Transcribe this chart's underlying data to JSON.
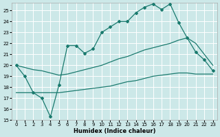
{
  "xlabel": "Humidex (Indice chaleur)",
  "bg_color": "#cce8e8",
  "grid_color": "#ffffff",
  "line_color": "#1a7a6e",
  "xlim": [
    -0.5,
    23.5
  ],
  "ylim": [
    15,
    25.7
  ],
  "xticks": [
    0,
    1,
    2,
    3,
    4,
    5,
    6,
    7,
    8,
    9,
    10,
    11,
    12,
    13,
    14,
    15,
    16,
    17,
    18,
    19,
    20,
    21,
    22,
    23
  ],
  "yticks": [
    15,
    16,
    17,
    18,
    19,
    20,
    21,
    22,
    23,
    24,
    25
  ],
  "series1_x": [
    0,
    1,
    2,
    3,
    4,
    5,
    6,
    7,
    8,
    9,
    10,
    11,
    12,
    13,
    14,
    15,
    16,
    17,
    18,
    19,
    20,
    21,
    22,
    23
  ],
  "series1_y": [
    20.0,
    19.0,
    17.5,
    17.0,
    15.3,
    18.2,
    21.8,
    21.8,
    21.1,
    21.5,
    23.0,
    23.5,
    24.0,
    24.0,
    24.8,
    25.3,
    25.6,
    25.1,
    25.6,
    23.9,
    22.5,
    21.2,
    20.5,
    19.5
  ],
  "series2_x": [
    0,
    1,
    2,
    3,
    4,
    5,
    6,
    7,
    8,
    9,
    10,
    11,
    12,
    13,
    14,
    15,
    16,
    17,
    18,
    19,
    20,
    21,
    22,
    23
  ],
  "series2_y": [
    20.0,
    19.8,
    19.6,
    19.5,
    19.3,
    19.1,
    19.2,
    19.4,
    19.6,
    19.8,
    20.0,
    20.3,
    20.6,
    20.8,
    21.1,
    21.4,
    21.6,
    21.8,
    22.0,
    22.3,
    22.5,
    22.0,
    21.0,
    20.0
  ],
  "series3_x": [
    0,
    1,
    2,
    3,
    4,
    5,
    6,
    7,
    8,
    9,
    10,
    11,
    12,
    13,
    14,
    15,
    16,
    17,
    18,
    19,
    20,
    21,
    22,
    23
  ],
  "series3_y": [
    17.5,
    17.5,
    17.5,
    17.5,
    17.5,
    17.5,
    17.6,
    17.7,
    17.8,
    17.9,
    18.0,
    18.1,
    18.3,
    18.5,
    18.6,
    18.8,
    19.0,
    19.1,
    19.2,
    19.3,
    19.3,
    19.2,
    19.2,
    19.2
  ]
}
